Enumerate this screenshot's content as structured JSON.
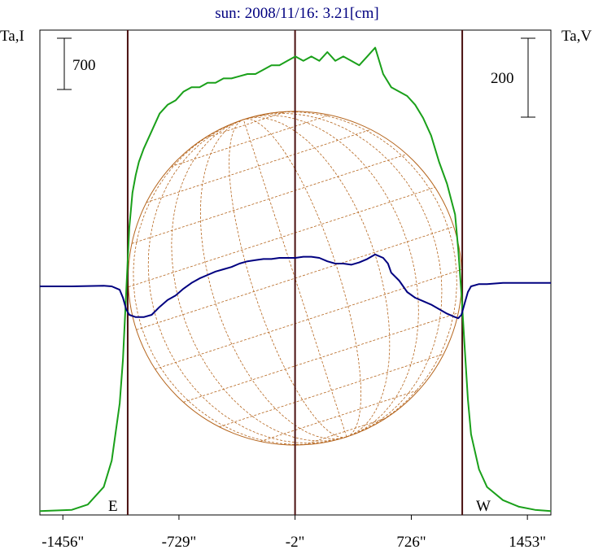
{
  "chart_data": {
    "type": "line",
    "title": "sun: 2008/11/16: 3.21[cm]",
    "left_axis_label": "Ta,I",
    "right_axis_label": "Ta,V",
    "left_scale_bar": "700",
    "right_scale_bar": "200",
    "east_label": "E",
    "west_label": "W",
    "xlim": [
      -1600,
      1600
    ],
    "x_ticks": [
      {
        "value": -1456,
        "label": "-1456\""
      },
      {
        "value": -729,
        "label": "-729\""
      },
      {
        "value": -2,
        "label": "-2\""
      },
      {
        "value": 726,
        "label": "726\""
      },
      {
        "value": 1453,
        "label": "1453\""
      }
    ],
    "vertical_markers": [
      -1050,
      -2,
      1045
    ],
    "solar_disk_radius": 1045,
    "grid": "latitude-longitude overlay",
    "series": [
      {
        "color": "#1aa01a",
        "x": [
          -1600,
          -1400,
          -1300,
          -1200,
          -1150,
          -1100,
          -1080,
          -1060,
          -1040,
          -1020,
          -1000,
          -980,
          -950,
          -900,
          -850,
          -800,
          -750,
          -700,
          -650,
          -600,
          -550,
          -500,
          -450,
          -400,
          -350,
          -300,
          -250,
          -200,
          -150,
          -100,
          -50,
          0,
          50,
          100,
          150,
          200,
          250,
          300,
          350,
          400,
          450,
          500,
          550,
          600,
          650,
          700,
          750,
          800,
          850,
          900,
          950,
          1000,
          1020,
          1040,
          1060,
          1080,
          1100,
          1150,
          1200,
          1300,
          1400,
          1500,
          1600
        ],
        "y": [
          0.005,
          0.008,
          0.02,
          0.06,
          0.12,
          0.25,
          0.35,
          0.5,
          0.65,
          0.73,
          0.77,
          0.8,
          0.83,
          0.87,
          0.91,
          0.93,
          0.94,
          0.96,
          0.97,
          0.97,
          0.98,
          0.98,
          0.99,
          0.99,
          0.995,
          1.0,
          1.0,
          1.01,
          1.02,
          1.02,
          1.03,
          1.04,
          1.03,
          1.04,
          1.03,
          1.05,
          1.03,
          1.04,
          1.03,
          1.02,
          1.04,
          1.06,
          1.0,
          0.97,
          0.96,
          0.95,
          0.93,
          0.9,
          0.86,
          0.8,
          0.75,
          0.68,
          0.6,
          0.5,
          0.38,
          0.26,
          0.18,
          0.1,
          0.06,
          0.03,
          0.015,
          0.008,
          0.005
        ]
      },
      {
        "color": "#000080",
        "x": [
          -1600,
          -1400,
          -1200,
          -1150,
          -1100,
          -1080,
          -1060,
          -1040,
          -1000,
          -950,
          -900,
          -850,
          -800,
          -750,
          -700,
          -650,
          -600,
          -550,
          -500,
          -450,
          -400,
          -350,
          -300,
          -250,
          -200,
          -150,
          -100,
          -50,
          0,
          50,
          100,
          150,
          200,
          250,
          300,
          350,
          400,
          450,
          500,
          550,
          580,
          600,
          650,
          700,
          750,
          800,
          850,
          900,
          950,
          1000,
          1020,
          1040,
          1060,
          1080,
          1100,
          1150,
          1200,
          1300,
          1400,
          1500,
          1600
        ],
        "y": [
          0.0,
          0.0,
          0.005,
          0.0,
          -0.03,
          -0.1,
          -0.2,
          -0.25,
          -0.27,
          -0.27,
          -0.25,
          -0.18,
          -0.12,
          -0.08,
          -0.02,
          0.03,
          0.07,
          0.1,
          0.13,
          0.15,
          0.17,
          0.2,
          0.22,
          0.23,
          0.24,
          0.24,
          0.25,
          0.25,
          0.25,
          0.26,
          0.26,
          0.25,
          0.22,
          0.2,
          0.2,
          0.19,
          0.21,
          0.24,
          0.28,
          0.25,
          0.2,
          0.12,
          0.05,
          -0.05,
          -0.1,
          -0.13,
          -0.16,
          -0.2,
          -0.24,
          -0.27,
          -0.28,
          -0.25,
          -0.15,
          -0.05,
          0.0,
          0.02,
          0.02,
          0.03,
          0.03,
          0.03,
          0.03
        ]
      }
    ]
  }
}
